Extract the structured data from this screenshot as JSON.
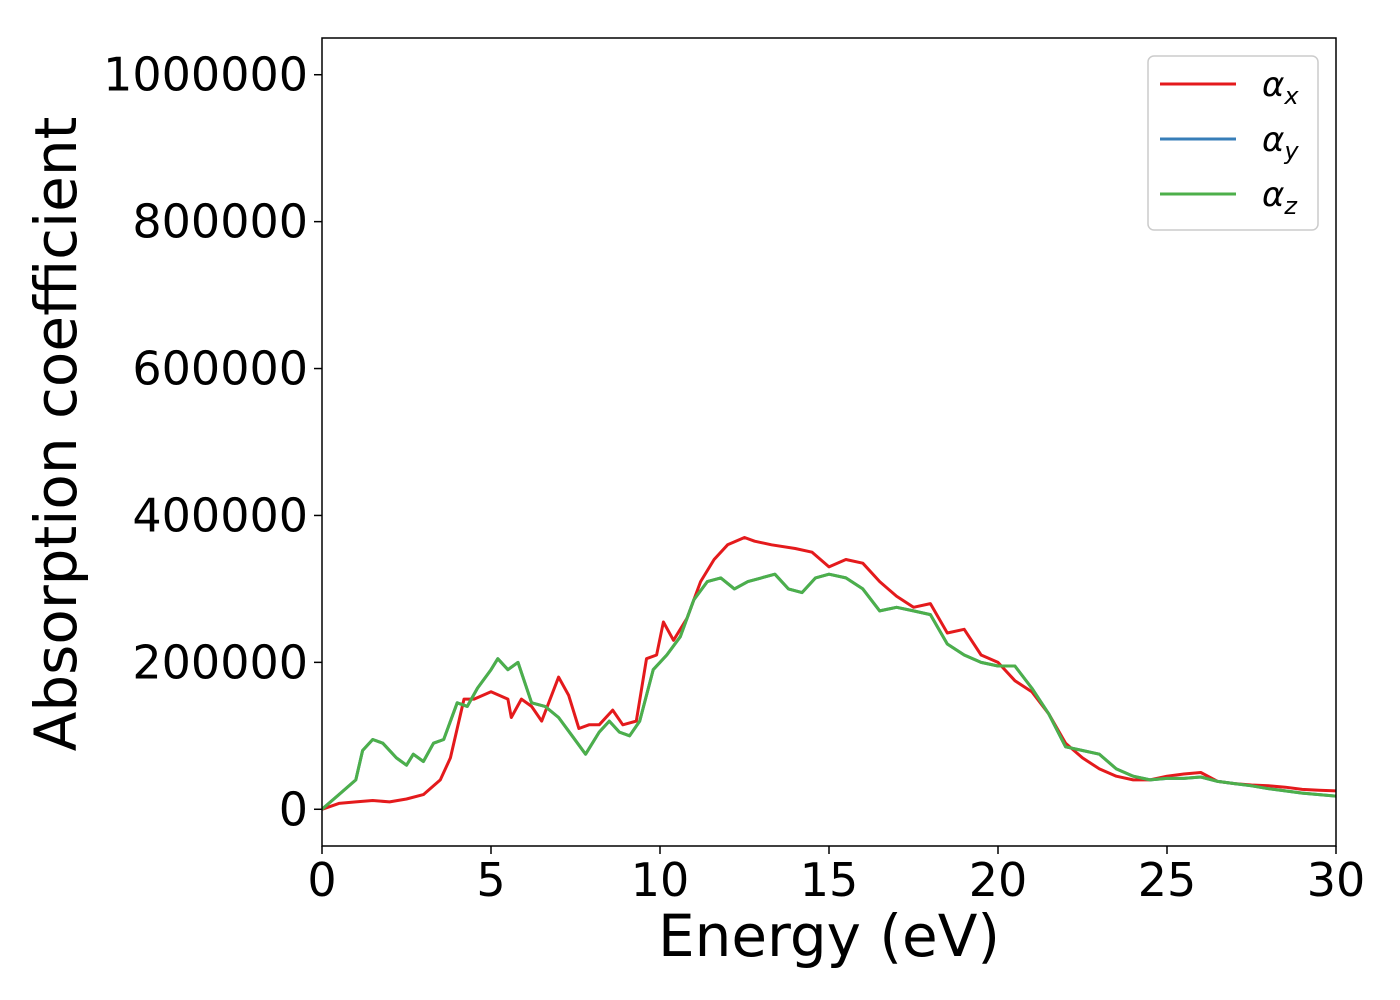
{
  "chart_data": {
    "type": "line",
    "xlabel": "Energy (eV)",
    "ylabel": "Absorption coefficient",
    "xlim": [
      0,
      30
    ],
    "ylim": [
      -50000,
      1050000
    ],
    "xticks": [
      "0",
      "5",
      "10",
      "15",
      "20",
      "25",
      "30"
    ],
    "yticks": [
      "0",
      "200000",
      "400000",
      "600000",
      "800000",
      "1000000"
    ],
    "grid": false,
    "legend_position": "top-right",
    "series": [
      {
        "name": "α_x",
        "legend_main": "α",
        "legend_sub": "x",
        "color": "#e41a1c",
        "x": [
          0,
          0.5,
          1,
          1.5,
          2,
          2.5,
          3,
          3.5,
          3.8,
          4.2,
          4.5,
          5,
          5.5,
          5.6,
          5.9,
          6.2,
          6.5,
          7,
          7.3,
          7.6,
          7.9,
          8.2,
          8.6,
          8.9,
          9.3,
          9.6,
          9.9,
          10.1,
          10.4,
          10.8,
          11.2,
          11.6,
          12,
          12.5,
          12.8,
          13.3,
          14,
          14.5,
          15,
          15.5,
          16,
          16.5,
          17,
          17.5,
          18,
          18.5,
          19,
          19.5,
          20,
          20.5,
          21,
          21.5,
          22,
          22.5,
          23,
          23.5,
          24,
          24.5,
          25,
          25.5,
          26,
          26.5,
          27,
          27.5,
          28,
          28.5,
          29,
          29.5,
          30
        ],
        "y": [
          0,
          8000,
          10000,
          12000,
          10000,
          14000,
          20000,
          40000,
          70000,
          150000,
          150000,
          160000,
          150000,
          125000,
          150000,
          140000,
          120000,
          180000,
          155000,
          110000,
          115000,
          115000,
          135000,
          115000,
          120000,
          205000,
          210000,
          255000,
          230000,
          260000,
          310000,
          340000,
          360000,
          370000,
          365000,
          360000,
          355000,
          350000,
          330000,
          340000,
          335000,
          310000,
          290000,
          275000,
          280000,
          240000,
          245000,
          210000,
          200000,
          175000,
          160000,
          130000,
          90000,
          70000,
          55000,
          45000,
          40000,
          40000,
          45000,
          48000,
          50000,
          38000,
          35000,
          33000,
          32000,
          30000,
          27000,
          26000,
          25000
        ]
      },
      {
        "name": "α_y",
        "legend_main": "α",
        "legend_sub": "y",
        "color": "#377eb8",
        "x": [
          0,
          0.5,
          1,
          1.2,
          1.5,
          1.8,
          2.2,
          2.5,
          2.7,
          3,
          3.3,
          3.6,
          4,
          4.3,
          4.6,
          5,
          5.2,
          5.5,
          5.8,
          6.2,
          6.6,
          7,
          7.4,
          7.8,
          8.2,
          8.5,
          8.8,
          9.1,
          9.4,
          9.8,
          10.2,
          10.6,
          11,
          11.4,
          11.8,
          12.2,
          12.6,
          13,
          13.4,
          13.8,
          14.2,
          14.6,
          15,
          15.5,
          16,
          16.5,
          17,
          17.5,
          18,
          18.5,
          19,
          19.5,
          20,
          20.5,
          21,
          21.5,
          22,
          22.5,
          23,
          23.5,
          24,
          24.5,
          25,
          25.5,
          26,
          26.5,
          27,
          27.5,
          28,
          28.5,
          29,
          29.5,
          30
        ],
        "y": [
          0,
          20000,
          40000,
          80000,
          95000,
          90000,
          70000,
          60000,
          75000,
          65000,
          90000,
          95000,
          145000,
          140000,
          165000,
          190000,
          205000,
          190000,
          200000,
          145000,
          140000,
          125000,
          100000,
          75000,
          105000,
          120000,
          105000,
          100000,
          120000,
          190000,
          210000,
          235000,
          285000,
          310000,
          315000,
          300000,
          310000,
          315000,
          320000,
          300000,
          295000,
          315000,
          320000,
          315000,
          300000,
          270000,
          275000,
          270000,
          265000,
          225000,
          210000,
          200000,
          195000,
          195000,
          165000,
          130000,
          85000,
          80000,
          75000,
          55000,
          45000,
          40000,
          42000,
          42000,
          44000,
          38000,
          35000,
          32000,
          28000,
          25000,
          22000,
          20000,
          18000
        ]
      },
      {
        "name": "α_z",
        "legend_main": "α",
        "legend_sub": "z",
        "color": "#4daf4a",
        "x": [
          0,
          0.5,
          1,
          1.2,
          1.5,
          1.8,
          2.2,
          2.5,
          2.7,
          3,
          3.3,
          3.6,
          4,
          4.3,
          4.6,
          5,
          5.2,
          5.5,
          5.8,
          6.2,
          6.6,
          7,
          7.4,
          7.8,
          8.2,
          8.5,
          8.8,
          9.1,
          9.4,
          9.8,
          10.2,
          10.6,
          11,
          11.4,
          11.8,
          12.2,
          12.6,
          13,
          13.4,
          13.8,
          14.2,
          14.6,
          15,
          15.5,
          16,
          16.5,
          17,
          17.5,
          18,
          18.5,
          19,
          19.5,
          20,
          20.5,
          21,
          21.5,
          22,
          22.5,
          23,
          23.5,
          24,
          24.5,
          25,
          25.5,
          26,
          26.5,
          27,
          27.5,
          28,
          28.5,
          29,
          29.5,
          30
        ],
        "y": [
          0,
          20000,
          40000,
          80000,
          95000,
          90000,
          70000,
          60000,
          75000,
          65000,
          90000,
          95000,
          145000,
          140000,
          165000,
          190000,
          205000,
          190000,
          200000,
          145000,
          140000,
          125000,
          100000,
          75000,
          105000,
          120000,
          105000,
          100000,
          120000,
          190000,
          210000,
          235000,
          285000,
          310000,
          315000,
          300000,
          310000,
          315000,
          320000,
          300000,
          295000,
          315000,
          320000,
          315000,
          300000,
          270000,
          275000,
          270000,
          265000,
          225000,
          210000,
          200000,
          195000,
          195000,
          165000,
          130000,
          85000,
          80000,
          75000,
          55000,
          45000,
          40000,
          42000,
          42000,
          44000,
          38000,
          35000,
          32000,
          28000,
          25000,
          22000,
          20000,
          18000
        ]
      }
    ]
  }
}
